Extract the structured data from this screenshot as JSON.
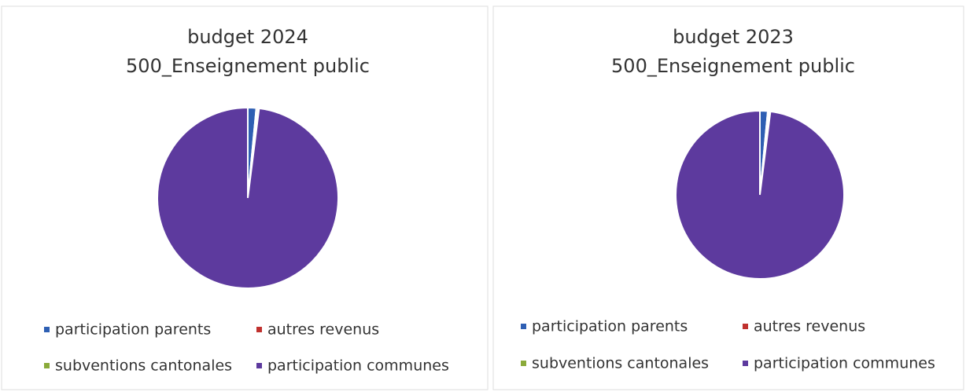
{
  "chart_data": [
    {
      "type": "pie",
      "title": "budget 2024",
      "subtitle": "500_Enseignement public",
      "categories": [
        "participation parents",
        "autres revenus",
        "subventions cantonales",
        "participation communes"
      ],
      "values": [
        1.5,
        0.3,
        0.2,
        98
      ],
      "colors": [
        "#2e5fb3",
        "#c0312e",
        "#8aaa3a",
        "#5d3a9e"
      ]
    },
    {
      "type": "pie",
      "title": "budget 2023",
      "subtitle": "500_Enseignement public",
      "categories": [
        "participation parents",
        "autres revenus",
        "subventions cantonales",
        "participation communes"
      ],
      "values": [
        1.5,
        0.3,
        0.2,
        98
      ],
      "colors": [
        "#2e5fb3",
        "#c0312e",
        "#8aaa3a",
        "#5d3a9e"
      ]
    }
  ]
}
